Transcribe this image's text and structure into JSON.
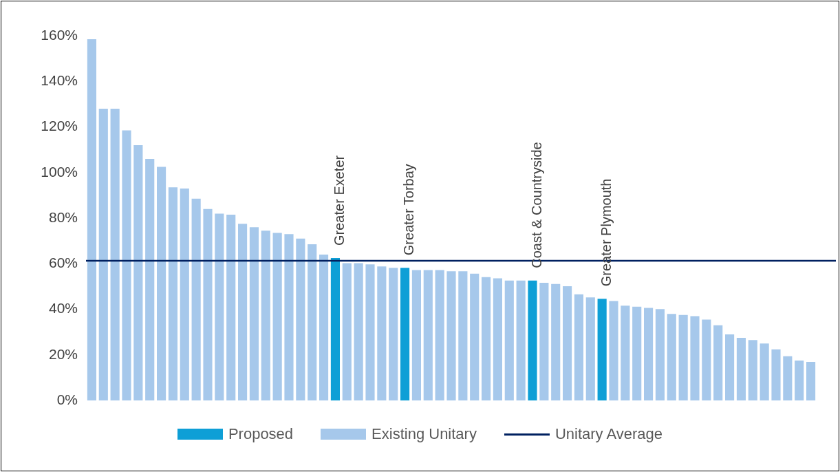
{
  "chart_data": {
    "type": "bar",
    "categories": [
      null,
      null,
      null,
      null,
      null,
      null,
      null,
      null,
      null,
      null,
      null,
      null,
      null,
      null,
      null,
      null,
      null,
      null,
      null,
      null,
      null,
      null,
      null,
      null,
      null,
      null,
      null,
      null,
      null,
      null,
      null,
      null,
      null,
      null,
      null,
      null,
      null,
      null,
      null,
      null,
      null,
      null,
      null,
      null,
      null,
      null,
      null,
      null,
      null,
      null,
      null,
      null,
      null,
      null,
      null,
      null,
      null,
      null,
      null,
      null,
      null,
      null,
      null
    ],
    "series": [
      {
        "name": "Proposed",
        "color": "#0e9fd6",
        "values": [
          null,
          null,
          null,
          null,
          null,
          null,
          null,
          null,
          null,
          null,
          null,
          null,
          null,
          null,
          null,
          null,
          null,
          null,
          null,
          null,
          null,
          62.5,
          null,
          null,
          null,
          null,
          null,
          58.2,
          null,
          null,
          null,
          null,
          null,
          null,
          null,
          null,
          null,
          null,
          52.6,
          null,
          null,
          null,
          null,
          null,
          44.6,
          null,
          null,
          null,
          null,
          null,
          null,
          null,
          null,
          null,
          null,
          null,
          null,
          null,
          null,
          null,
          null,
          null,
          null
        ],
        "value_labels": [
          null,
          null,
          null,
          null,
          null,
          null,
          null,
          null,
          null,
          null,
          null,
          null,
          null,
          null,
          null,
          null,
          null,
          null,
          null,
          null,
          null,
          "Greater Exeter",
          null,
          null,
          null,
          null,
          null,
          "Greater Torbay",
          null,
          null,
          null,
          null,
          null,
          null,
          null,
          null,
          null,
          null,
          "Coast & Countryside",
          null,
          null,
          null,
          null,
          null,
          "Greater Plymouth",
          null,
          null,
          null,
          null,
          null,
          null,
          null,
          null,
          null,
          null,
          null,
          null,
          null,
          null,
          null,
          null,
          null,
          null
        ]
      },
      {
        "name": "Existing Unitary",
        "color": "#a6c8eb",
        "values": [
          158.5,
          128,
          128,
          118.5,
          112,
          106,
          102.5,
          93.5,
          93,
          88.5,
          84,
          82,
          81.5,
          77.5,
          76,
          74.5,
          73.5,
          73,
          71,
          68.5,
          64,
          null,
          60.2,
          60.2,
          59.7,
          58.8,
          58.2,
          null,
          57.2,
          57.2,
          57.2,
          56.7,
          56.7,
          55.6,
          54.1,
          53.6,
          52.6,
          52.6,
          null,
          51.6,
          51.1,
          50.1,
          46.6,
          45.2,
          null,
          43.6,
          41.6,
          41.1,
          40.6,
          40.1,
          38,
          37.5,
          37,
          35.5,
          33,
          29,
          27.5,
          26.5,
          25,
          22.4,
          19.4,
          17.5,
          16.9
        ]
      }
    ],
    "ref_lines": [
      {
        "axis": "y",
        "value": 61.3,
        "label": "Unitary Average",
        "color": "#002060"
      }
    ],
    "ylim": [
      0,
      160
    ],
    "yticks": [
      {
        "value": 0,
        "label": "0%"
      },
      {
        "value": 20,
        "label": "20%"
      },
      {
        "value": 40,
        "label": "40%"
      },
      {
        "value": 60,
        "label": "60%"
      },
      {
        "value": 80,
        "label": "80%"
      },
      {
        "value": 100,
        "label": "100%"
      },
      {
        "value": 120,
        "label": "120%"
      },
      {
        "value": 140,
        "label": "140%"
      },
      {
        "value": 160,
        "label": "160%"
      }
    ],
    "stacked": true,
    "tick_labels": "y",
    "grid": false,
    "legend": "bottom"
  }
}
